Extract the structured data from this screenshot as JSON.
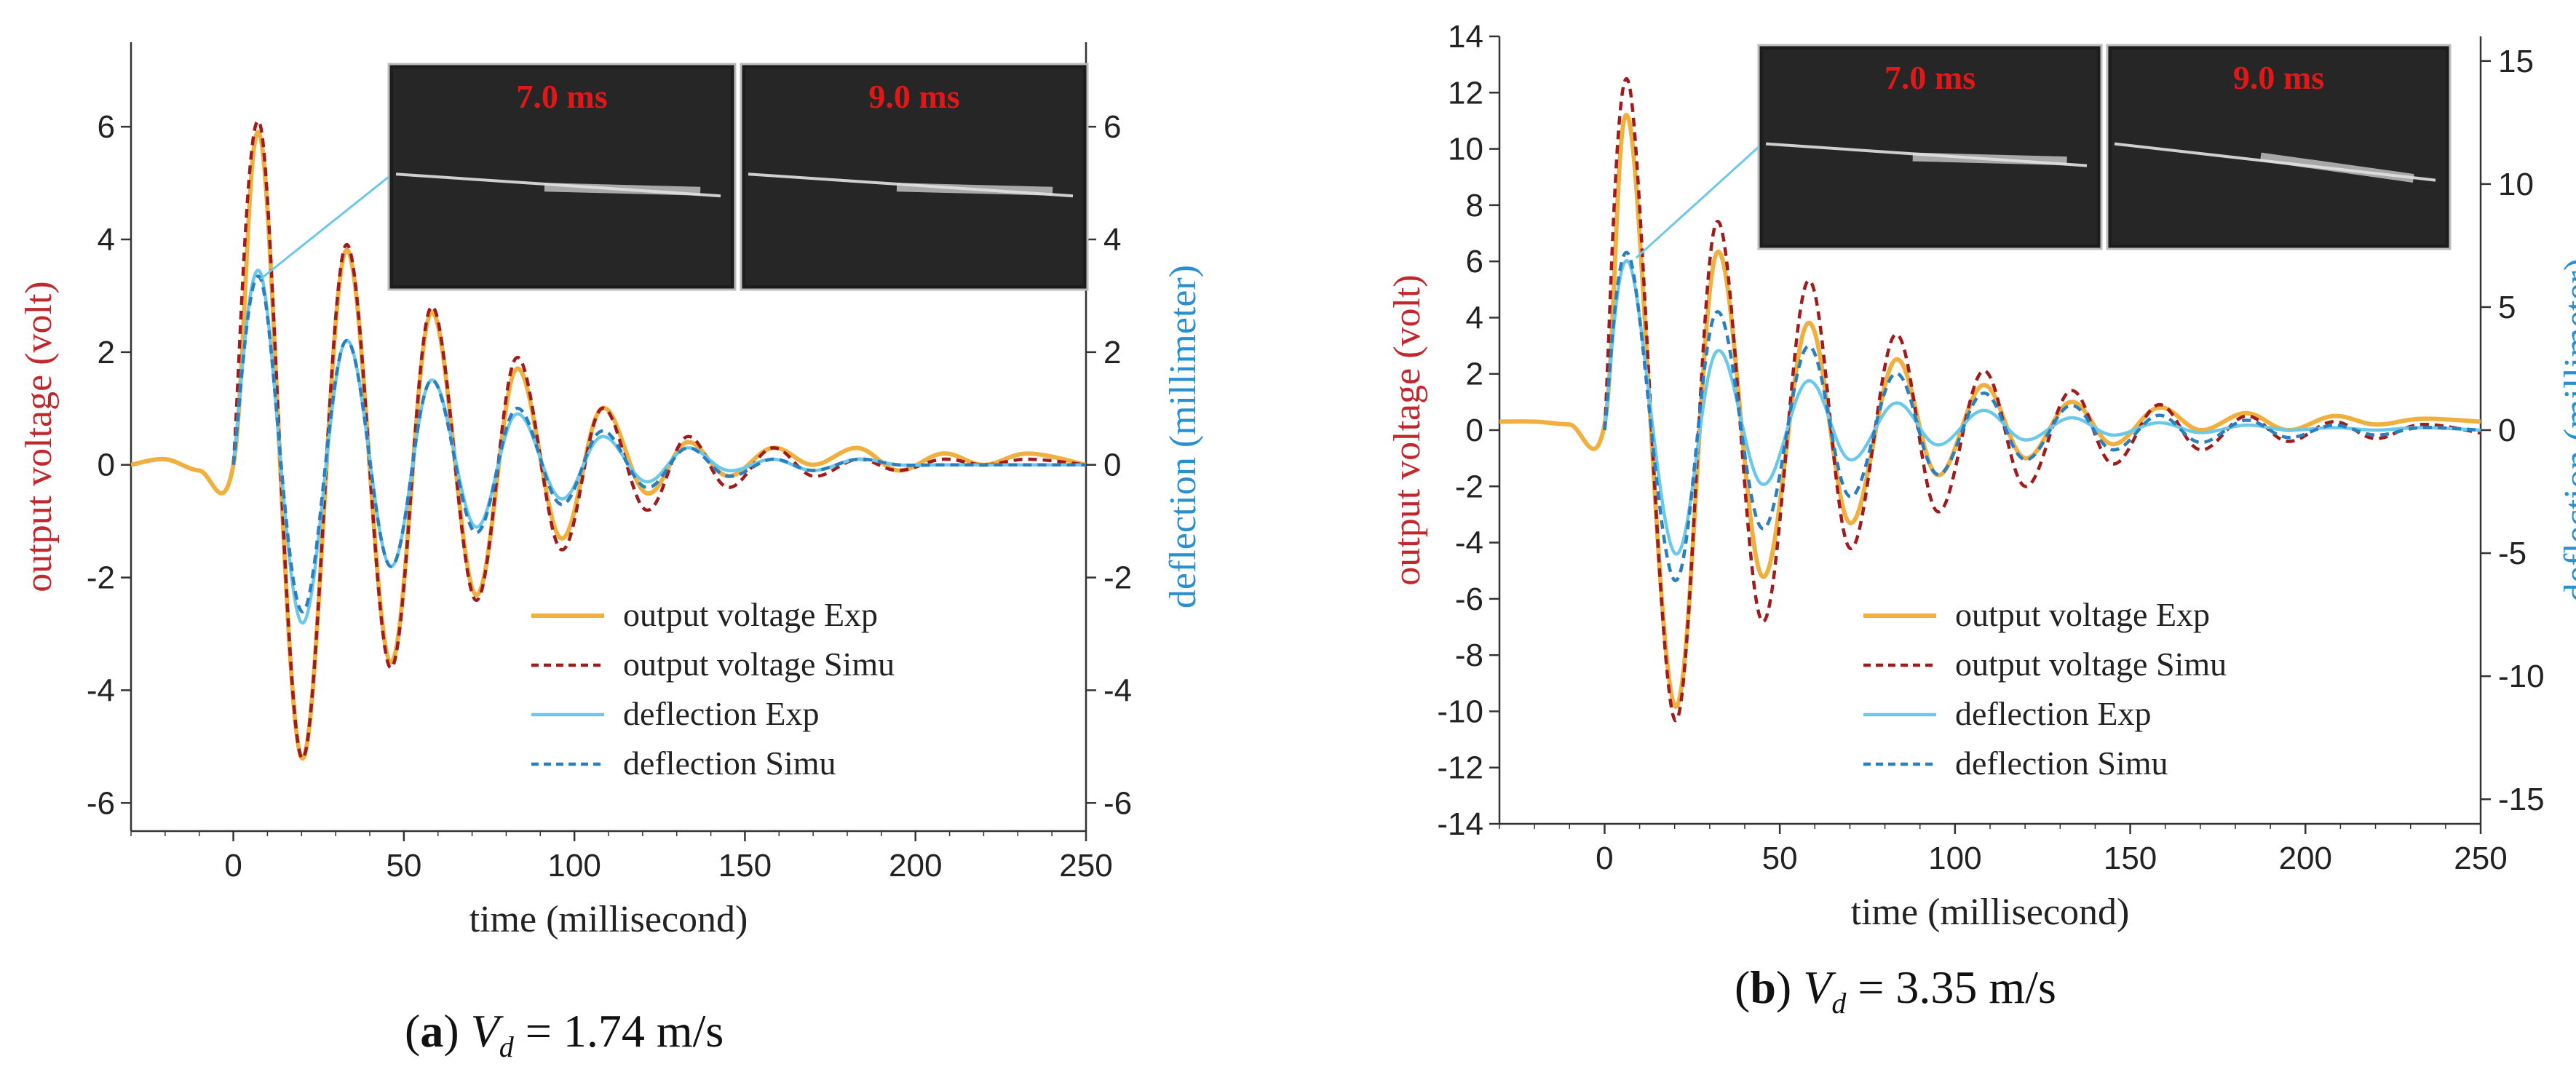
{
  "colors": {
    "voltage_exp": "#f0b040",
    "voltage_simu": "#a01c1c",
    "deflection_exp": "#6cc8e8",
    "deflection_simu": "#2a7fc0",
    "left_axis_label": "#c0282d",
    "right_axis_label": "#2a8fd0",
    "photo_label": "#e01818"
  },
  "chart_data": [
    {
      "id": "a",
      "type": "line",
      "caption": {
        "tag": "a",
        "var": "V",
        "sub": "d",
        "value": " = 1.74 m/s"
      },
      "xlabel": "time (millisecond)",
      "ylabel": "output voltage (volt)",
      "y2label": "deflection (millimeter)",
      "xlim": [
        -30,
        250
      ],
      "ylim": [
        -6.5,
        7.5
      ],
      "y2lim": [
        -6.5,
        7.5
      ],
      "xticks": [
        0,
        50,
        100,
        150,
        200,
        250
      ],
      "yticks": [
        -6,
        -4,
        -2,
        0,
        2,
        4,
        6
      ],
      "y2ticks": [
        -6,
        -4,
        -2,
        0,
        2,
        4,
        6
      ],
      "inset_labels": [
        "7.0 ms",
        "9.0 ms"
      ],
      "legend": [
        "output voltage Exp",
        "output voltage Simu",
        "deflection Exp",
        "deflection Simu"
      ],
      "series": [
        {
          "name": "output voltage Exp",
          "axis": "left",
          "style": "solid",
          "x": [
            -30,
            -20,
            -10,
            0,
            8,
            20,
            33,
            46,
            58,
            71,
            83,
            96,
            108,
            121,
            133,
            145,
            158,
            170,
            183,
            195,
            208,
            220,
            233,
            250
          ],
          "y": [
            0,
            0.1,
            -0.1,
            0,
            5.8,
            -5.2,
            3.8,
            -3.5,
            2.7,
            -2.3,
            1.7,
            -1.3,
            1.0,
            -0.5,
            0.4,
            -0.2,
            0.3,
            0,
            0.3,
            -0.1,
            0.2,
            0,
            0.2,
            0
          ]
        },
        {
          "name": "output voltage Simu",
          "axis": "left",
          "style": "dashed",
          "x": [
            0,
            8,
            20,
            33,
            46,
            58,
            71,
            83,
            96,
            108,
            121,
            133,
            145,
            158,
            170,
            183,
            195,
            208,
            220,
            233,
            250
          ],
          "y": [
            0,
            6.0,
            -5.2,
            3.9,
            -3.6,
            2.8,
            -2.4,
            1.9,
            -1.5,
            1.0,
            -0.8,
            0.5,
            -0.4,
            0.3,
            -0.2,
            0.1,
            -0.1,
            0.1,
            0,
            0.1,
            0
          ]
        },
        {
          "name": "deflection Exp",
          "axis": "right",
          "style": "solid",
          "x": [
            0,
            8,
            20,
            33,
            46,
            58,
            71,
            83,
            96,
            108,
            121,
            133,
            145,
            158,
            170,
            183,
            195,
            208,
            220,
            233,
            250
          ],
          "y": [
            0,
            3.4,
            -2.8,
            2.2,
            -1.8,
            1.5,
            -1.1,
            0.9,
            -0.6,
            0.5,
            -0.3,
            0.3,
            -0.1,
            0.1,
            -0.1,
            0.1,
            0,
            0,
            0,
            0,
            0
          ]
        },
        {
          "name": "deflection Simu",
          "axis": "right",
          "style": "dashed",
          "x": [
            0,
            8,
            20,
            33,
            46,
            58,
            71,
            83,
            96,
            108,
            121,
            133,
            145,
            158,
            170,
            183,
            195,
            208,
            220,
            233,
            250
          ],
          "y": [
            0,
            3.3,
            -2.6,
            2.2,
            -1.8,
            1.5,
            -1.2,
            1.0,
            -0.7,
            0.6,
            -0.4,
            0.3,
            -0.2,
            0.1,
            -0.1,
            0.1,
            0,
            0,
            0,
            0,
            0
          ]
        }
      ]
    },
    {
      "id": "b",
      "type": "line",
      "caption": {
        "tag": "b",
        "var": "V",
        "sub": "d",
        "value": " = 3.35 m/s"
      },
      "xlabel": "time (millisecond)",
      "ylabel": "output voltage (volt)",
      "y2label": "deflection (millimeter)",
      "xlim": [
        -30,
        250
      ],
      "ylim": [
        -14,
        14
      ],
      "y2lim": [
        -16,
        16
      ],
      "xticks": [
        0,
        50,
        100,
        150,
        200,
        250
      ],
      "yticks": [
        -14,
        -12,
        -10,
        -8,
        -6,
        -4,
        -2,
        0,
        2,
        4,
        6,
        8,
        10,
        12,
        14
      ],
      "y2ticks": [
        -15,
        -10,
        -5,
        0,
        5,
        10,
        15
      ],
      "inset_labels": [
        "7.0 ms",
        "9.0 ms"
      ],
      "legend": [
        "output voltage Exp",
        "output voltage Simu",
        "deflection Exp",
        "deflection Simu"
      ],
      "series": [
        {
          "name": "output voltage Exp",
          "axis": "left",
          "style": "solid",
          "x": [
            -30,
            -20,
            -10,
            0,
            7,
            20,
            32,
            45,
            58,
            70,
            83,
            95,
            108,
            120,
            133,
            145,
            158,
            170,
            183,
            195,
            208,
            220,
            233,
            250
          ],
          "y": [
            0.3,
            0.3,
            0.2,
            0.2,
            11.0,
            -9.8,
            6.3,
            -5.2,
            3.8,
            -3.3,
            2.5,
            -1.6,
            1.6,
            -1.0,
            1.0,
            -0.5,
            0.8,
            0,
            0.6,
            0,
            0.5,
            0.2,
            0.4,
            0.3
          ]
        },
        {
          "name": "output voltage Simu",
          "axis": "left",
          "style": "dashed",
          "x": [
            0,
            7,
            20,
            32,
            45,
            58,
            70,
            83,
            95,
            108,
            120,
            133,
            145,
            158,
            170,
            183,
            195,
            208,
            220,
            233,
            250
          ],
          "y": [
            0,
            12.3,
            -10.3,
            7.4,
            -6.8,
            5.3,
            -4.2,
            3.4,
            -2.9,
            2.1,
            -2.0,
            1.4,
            -1.2,
            0.9,
            -0.7,
            0.5,
            -0.4,
            0.3,
            -0.3,
            0.2,
            -0.1
          ]
        },
        {
          "name": "deflection Exp",
          "axis": "right",
          "style": "solid",
          "x": [
            0,
            7,
            20,
            32,
            45,
            58,
            70,
            83,
            95,
            108,
            120,
            133,
            145,
            158,
            170,
            183,
            195,
            208,
            220,
            233,
            250
          ],
          "y": [
            0,
            6.8,
            -5.0,
            3.2,
            -2.2,
            2.0,
            -1.2,
            1.1,
            -0.6,
            0.8,
            -0.4,
            0.5,
            -0.2,
            0.3,
            -0.1,
            0.2,
            0,
            0.1,
            0,
            0.1,
            0
          ]
        },
        {
          "name": "deflection Simu",
          "axis": "right",
          "style": "dashed",
          "x": [
            0,
            7,
            20,
            32,
            45,
            58,
            70,
            83,
            95,
            108,
            120,
            133,
            145,
            158,
            170,
            183,
            195,
            208,
            220,
            233,
            250
          ],
          "y": [
            0,
            7.1,
            -6.1,
            4.8,
            -4.0,
            3.4,
            -2.7,
            2.3,
            -1.8,
            1.5,
            -1.2,
            1.0,
            -0.8,
            0.6,
            -0.5,
            0.4,
            -0.3,
            0.2,
            -0.2,
            0.1,
            0
          ]
        }
      ]
    }
  ]
}
